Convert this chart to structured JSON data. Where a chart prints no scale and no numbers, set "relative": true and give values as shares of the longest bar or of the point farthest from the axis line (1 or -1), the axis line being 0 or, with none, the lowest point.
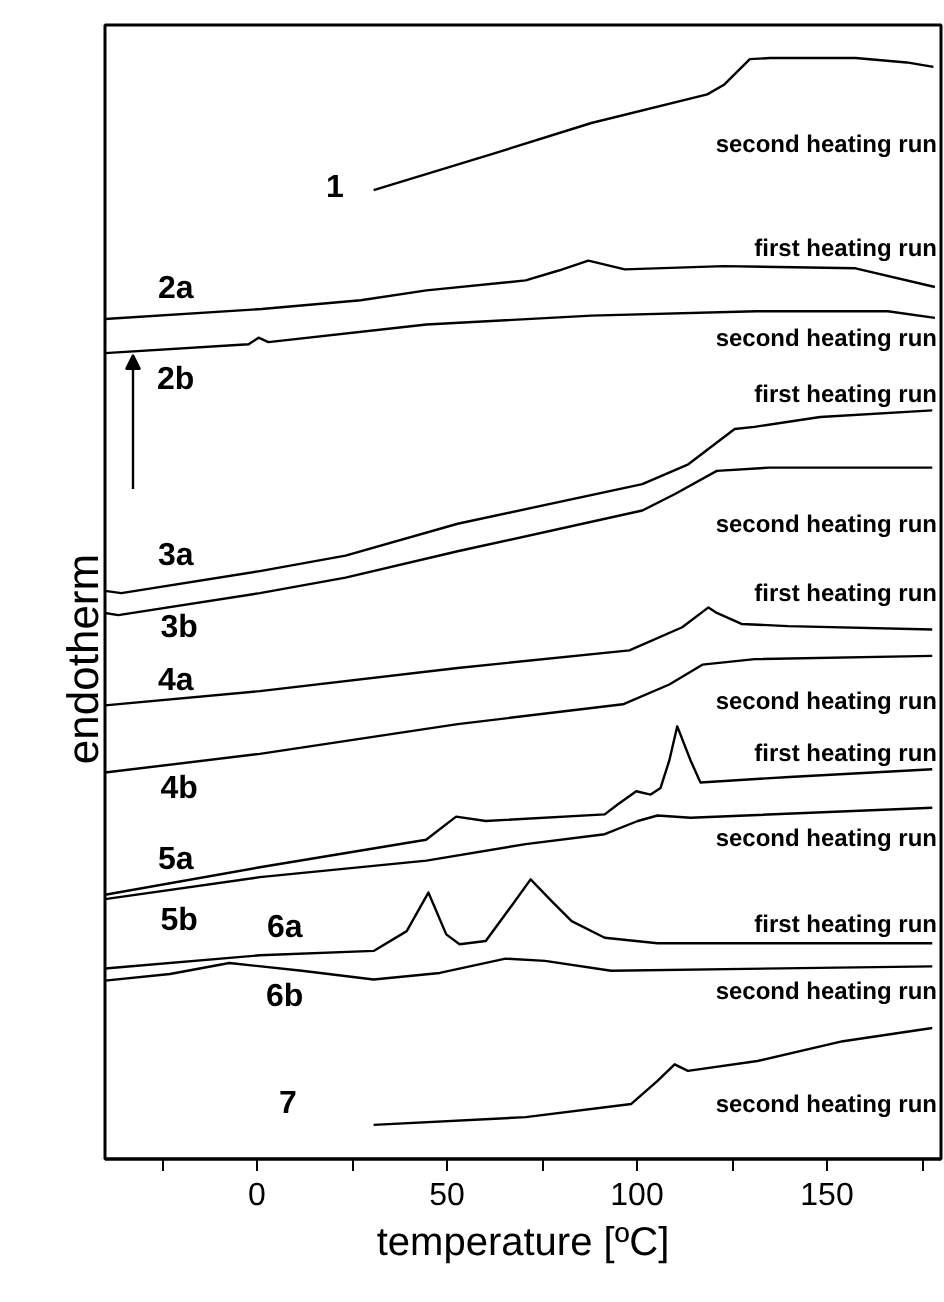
{
  "chart_data": {
    "type": "line",
    "relative": true,
    "xlabel": "temperature [ºC]",
    "ylabel": "endotherm",
    "xlim": [
      -40,
      180
    ],
    "xticks": [
      {
        "value": -25,
        "label": null
      },
      0,
      {
        "value": 25,
        "label": null
      },
      50,
      {
        "value": 75,
        "label": null
      },
      100,
      {
        "value": 125,
        "label": null
      },
      150,
      {
        "value": 175,
        "label": null
      }
    ],
    "grid": false,
    "tick_labels": "x",
    "marker": "none",
    "line_style": "solid",
    "series": [
      {
        "name": "1",
        "color": "#000000",
        "x": [
          30.7,
          62,
          88,
          118.5,
          123,
          129.7,
          135,
          157.5,
          171,
          178
        ],
        "values": [
          0.88,
          0.913,
          0.941,
          0.967,
          0.976,
          0.999,
          1.0,
          1.0,
          0.996,
          0.992
        ]
      },
      {
        "name": "2a",
        "color": "#000000",
        "x": [
          -40,
          1.2,
          27.3,
          44.6,
          70.7,
          79.4,
          87.2,
          96.8,
          122.8,
          157.5,
          178.4
        ],
        "values": [
          0.763,
          0.772,
          0.78,
          0.789,
          0.798,
          0.807,
          0.816,
          0.808,
          0.811,
          0.809,
          0.792
        ]
      },
      {
        "name": "2b",
        "color": "#000000",
        "x": [
          -40,
          -2.2,
          0.4,
          3,
          44.6,
          88,
          131.4,
          166,
          178.4
        ],
        "values": [
          0.732,
          0.74,
          0.746,
          0.742,
          0.758,
          0.766,
          0.77,
          0.77,
          0.764
        ]
      },
      {
        "name": "3a",
        "color": "#000000",
        "x": [
          -40,
          -35.7,
          0.75,
          23.3,
          52.8,
          101.4,
          113.5,
          125.7,
          130.9,
          148.2,
          177.7
        ],
        "values": [
          0.516,
          0.514,
          0.534,
          0.548,
          0.577,
          0.613,
          0.631,
          0.663,
          0.665,
          0.674,
          0.68
        ]
      },
      {
        "name": "3b",
        "color": "#000000",
        "x": [
          -40,
          -36.5,
          0.75,
          23.3,
          52.8,
          101.4,
          110,
          121,
          134.9,
          177.7
        ],
        "values": [
          0.496,
          0.494,
          0.514,
          0.528,
          0.552,
          0.589,
          0.604,
          0.625,
          0.628,
          0.628
        ]
      },
      {
        "name": "4a",
        "color": "#000000",
        "x": [
          -40,
          0.75,
          52.8,
          98,
          111.9,
          118.8,
          121,
          127.5,
          139.7,
          177.7
        ],
        "values": [
          0.412,
          0.425,
          0.446,
          0.462,
          0.483,
          0.501,
          0.496,
          0.486,
          0.484,
          0.481
        ]
      },
      {
        "name": "4b",
        "color": "#000000",
        "x": [
          -40,
          0.75,
          52.8,
          96.3,
          108.5,
          117.2,
          131,
          177.7
        ],
        "values": [
          0.351,
          0.368,
          0.395,
          0.413,
          0.431,
          0.449,
          0.454,
          0.457
        ]
      },
      {
        "name": "5a",
        "color": "#000000",
        "x": [
          -40,
          0.75,
          44.5,
          52.4,
          60.2,
          91.5,
          94.9,
          99.8,
          103.6,
          106.2,
          108.5,
          110.6,
          114.1,
          116.7,
          140.1,
          177.7
        ],
        "values": [
          0.24,
          0.265,
          0.29,
          0.311,
          0.307,
          0.313,
          0.322,
          0.334,
          0.331,
          0.337,
          0.362,
          0.393,
          0.362,
          0.342,
          0.347,
          0.354
        ]
      },
      {
        "name": "5b",
        "color": "#000000",
        "x": [
          -40,
          0.75,
          44.6,
          70.7,
          91.5,
          100.2,
          105.4,
          114.1,
          177.7
        ],
        "values": [
          0.236,
          0.256,
          0.271,
          0.286,
          0.295,
          0.307,
          0.312,
          0.31,
          0.319
        ]
      },
      {
        "name": "6a",
        "color": "#000000",
        "x": [
          -40,
          0.75,
          30.7,
          39.4,
          45.1,
          49.8,
          53.3,
          60.2,
          67.2,
          72,
          77.6,
          82.8,
          91.5,
          105.4,
          177.7
        ],
        "values": [
          0.173,
          0.185,
          0.189,
          0.207,
          0.242,
          0.204,
          0.195,
          0.198,
          0.231,
          0.254,
          0.234,
          0.216,
          0.201,
          0.196,
          0.196
        ]
      },
      {
        "name": "6b",
        "color": "#000000",
        "x": [
          -40,
          -22.9,
          -7.3,
          11.8,
          30.7,
          48.1,
          65.4,
          75.8,
          93.2,
          177.7
        ],
        "values": [
          0.162,
          0.168,
          0.178,
          0.171,
          0.163,
          0.169,
          0.182,
          0.18,
          0.171,
          0.175
        ]
      },
      {
        "name": "7",
        "color": "#000000",
        "x": [
          30.7,
          70.7,
          98.5,
          105.4,
          109.9,
          113.4,
          131.7,
          154.2,
          177.7
        ],
        "values": [
          0.031,
          0.038,
          0.05,
          0.071,
          0.086,
          0.08,
          0.089,
          0.107,
          0.119
        ]
      }
    ],
    "annotations": [
      "second heating run",
      "first heating run",
      "second heating run",
      "first heating run",
      "second heating run",
      "first heating run",
      "second heating run",
      "first heating run",
      "second heating run",
      "first heating run",
      "second heating run",
      "second heating run"
    ]
  }
}
